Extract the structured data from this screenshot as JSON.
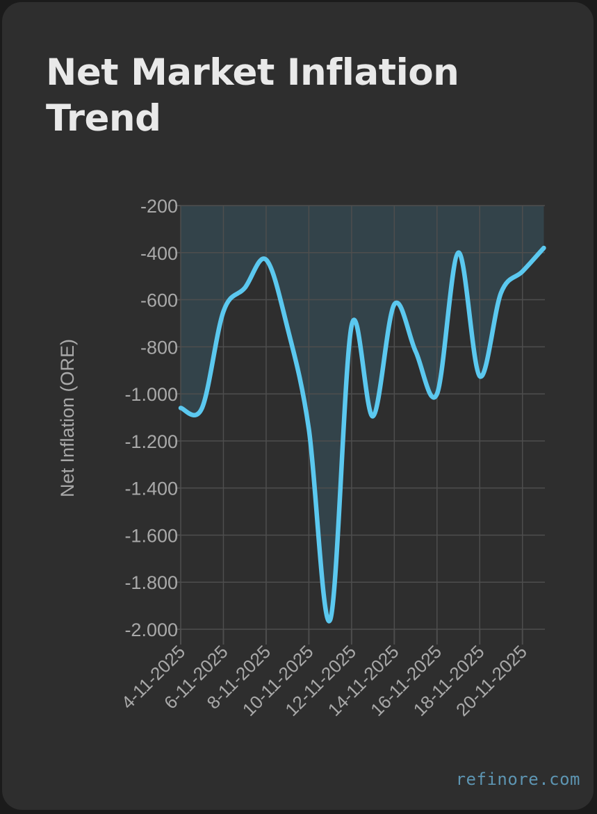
{
  "title": "Net Market Inflation Trend",
  "watermark": "refinore.com",
  "colors": {
    "background": "#2e2e2e",
    "line": "#5bc8ef",
    "area": "#33434a",
    "grid": "#4e4e4e",
    "tick_text": "#a9a9a9",
    "title": "#e9e9e9"
  },
  "chart_data": {
    "type": "area",
    "title": "Net Market Inflation Trend",
    "xlabel": "",
    "ylabel": "Net Inflation (ORE)",
    "ylim": [
      -2000,
      -200
    ],
    "xlim": [
      "4-11-2025",
      "21-11-2025"
    ],
    "grid": true,
    "yticks": [
      -200,
      -400,
      -600,
      -800,
      -1000,
      -1200,
      -1400,
      -1600,
      -1800,
      -2000
    ],
    "ytick_labels": [
      "-200",
      "-400",
      "-600",
      "-800",
      "-1.000",
      "-1.200",
      "-1.400",
      "-1.600",
      "-1.800",
      "-2.000"
    ],
    "xtick_labels": [
      "4-11-2025",
      "6-11-2025",
      "8-11-2025",
      "10-11-2025",
      "12-11-2025",
      "14-11-2025",
      "16-11-2025",
      "18-11-2025",
      "20-11-2025"
    ],
    "x": [
      "4-11-2025",
      "5-11-2025",
      "6-11-2025",
      "7-11-2025",
      "8-11-2025",
      "9-11-2025",
      "10-11-2025",
      "11-11-2025",
      "12-11-2025",
      "13-11-2025",
      "14-11-2025",
      "15-11-2025",
      "16-11-2025",
      "17-11-2025",
      "18-11-2025",
      "19-11-2025",
      "20-11-2025",
      "21-11-2025"
    ],
    "series": [
      {
        "values": [
          -1060,
          -1060,
          -650,
          -550,
          -430,
          -720,
          -1150,
          -1960,
          -710,
          -1095,
          -620,
          -820,
          -1000,
          -400,
          -925,
          -570,
          -480,
          -380
        ]
      }
    ]
  }
}
